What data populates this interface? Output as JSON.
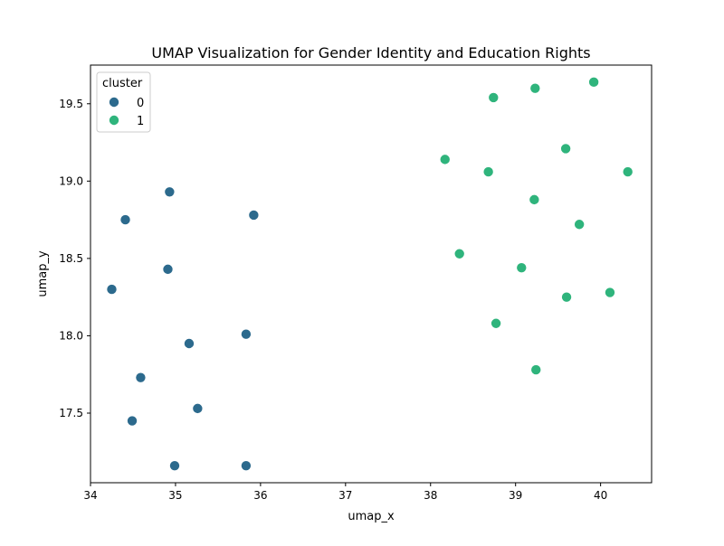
{
  "chart_data": {
    "type": "scatter",
    "title": "UMAP Visualization for Gender Identity and Education Rights",
    "xlabel": "umap_x",
    "ylabel": "umap_y",
    "xlim": [
      34.0,
      40.6
    ],
    "ylim": [
      17.05,
      19.75
    ],
    "xticks": [
      34,
      35,
      36,
      37,
      38,
      39,
      40
    ],
    "xtick_labels": [
      "34",
      "35",
      "36",
      "37",
      "38",
      "39",
      "40"
    ],
    "yticks": [
      17.5,
      18.0,
      18.5,
      19.0,
      19.5
    ],
    "ytick_labels": [
      "17.5",
      "18.0",
      "18.5",
      "19.0",
      "19.5"
    ],
    "grid": false,
    "legend": {
      "title": "cluster",
      "placement": "top-left"
    },
    "series": [
      {
        "name": "0",
        "color": "#2c6a8d",
        "points": [
          {
            "x": 34.93,
            "y": 18.93
          },
          {
            "x": 34.41,
            "y": 18.75
          },
          {
            "x": 35.92,
            "y": 18.78
          },
          {
            "x": 34.91,
            "y": 18.43
          },
          {
            "x": 34.25,
            "y": 18.3
          },
          {
            "x": 35.83,
            "y": 18.01
          },
          {
            "x": 35.16,
            "y": 17.95
          },
          {
            "x": 34.59,
            "y": 17.73
          },
          {
            "x": 35.26,
            "y": 17.53
          },
          {
            "x": 34.49,
            "y": 17.45
          },
          {
            "x": 34.99,
            "y": 17.16
          },
          {
            "x": 35.83,
            "y": 17.16
          }
        ]
      },
      {
        "name": "1",
        "color": "#2fb47c",
        "points": [
          {
            "x": 38.74,
            "y": 19.54
          },
          {
            "x": 39.23,
            "y": 19.6
          },
          {
            "x": 39.92,
            "y": 19.64
          },
          {
            "x": 39.59,
            "y": 19.21
          },
          {
            "x": 38.17,
            "y": 19.14
          },
          {
            "x": 38.68,
            "y": 19.06
          },
          {
            "x": 40.32,
            "y": 19.06
          },
          {
            "x": 39.22,
            "y": 18.88
          },
          {
            "x": 39.75,
            "y": 18.72
          },
          {
            "x": 38.34,
            "y": 18.53
          },
          {
            "x": 39.07,
            "y": 18.44
          },
          {
            "x": 39.6,
            "y": 18.25
          },
          {
            "x": 40.11,
            "y": 18.28
          },
          {
            "x": 38.77,
            "y": 18.08
          },
          {
            "x": 39.24,
            "y": 17.78
          }
        ]
      }
    ]
  }
}
